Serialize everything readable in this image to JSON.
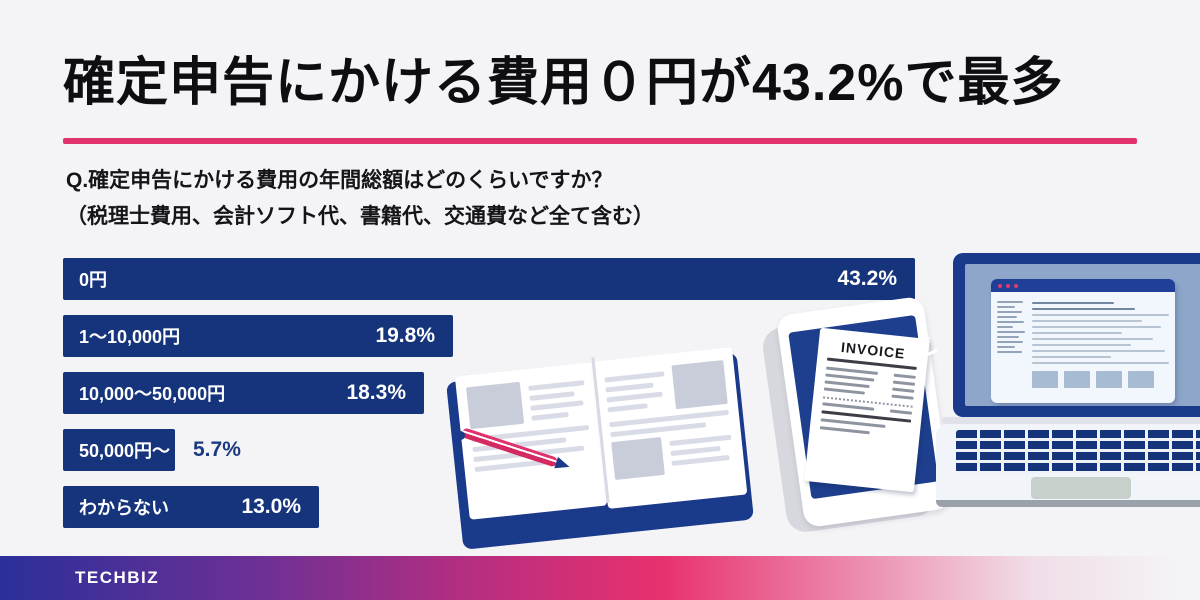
{
  "header": {
    "title": "確定申告にかける費用０円が43.2%で最多",
    "question_line1": "Q.確定申告にかける費用の年間総額はどのくらいですか？",
    "question_line2": "（税理士費用、会計ソフト代、書籍代、交通費など全て含む）"
  },
  "chart_data": {
    "type": "bar",
    "orientation": "horizontal",
    "categories": [
      "0円",
      "1〜10,000円",
      "10,000〜50,000円",
      "50,000円〜",
      "わからない"
    ],
    "values": [
      43.2,
      19.8,
      18.3,
      5.7,
      13.0
    ],
    "value_labels": [
      "43.2%",
      "19.8%",
      "18.3%",
      "5.7%",
      "13.0%"
    ],
    "value_label_outside": [
      false,
      false,
      false,
      true,
      false
    ],
    "bar_color": "#16347c",
    "label_color": "#ffffff",
    "outside_value_color": "#1c3a80",
    "grid": false,
    "legend": false,
    "xlim": [
      0,
      43.2
    ]
  },
  "illustrations": {
    "invoice_title": "INVOICE"
  },
  "footer": {
    "brand": "TECHBIZ"
  },
  "colors": {
    "background": "#f4f3f6",
    "bar_navy": "#16347c",
    "accent_pink": "#e0326b",
    "footer_gradient_start": "#2b2f9a",
    "footer_gradient_mid": "#e8306e",
    "illustration_navy": "#1a3a8c"
  }
}
